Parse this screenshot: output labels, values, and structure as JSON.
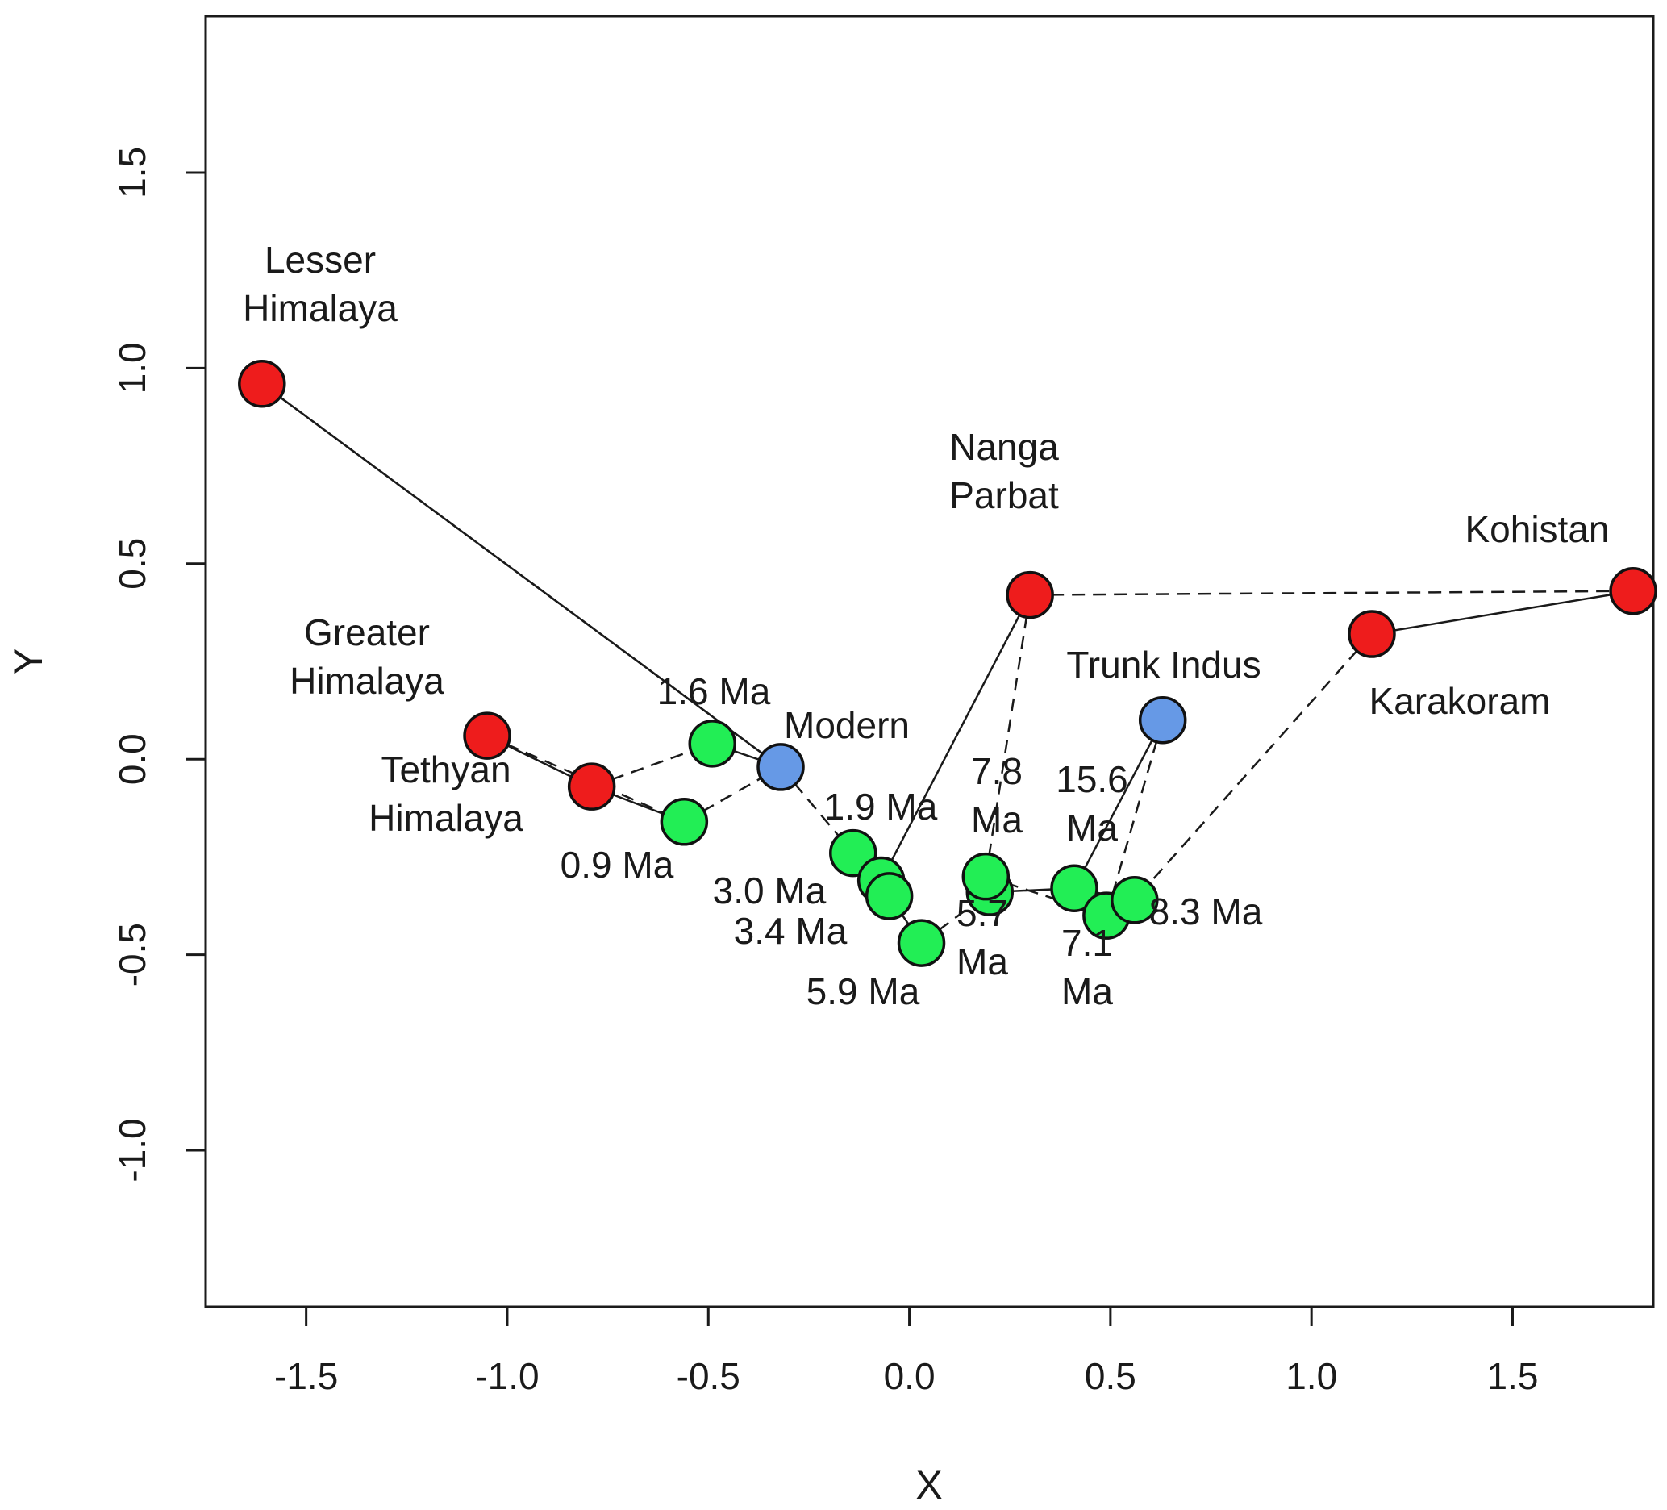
{
  "chart_data": {
    "type": "scatter",
    "xlabel": "X",
    "ylabel": "Y",
    "xlim": [
      -1.75,
      1.85
    ],
    "ylim": [
      -1.4,
      1.9
    ],
    "x_ticks": [
      "-1.5",
      "-1.0",
      "-0.5",
      "0.0",
      "0.5",
      "1.0",
      "1.5"
    ],
    "x_tick_values": [
      -1.5,
      -1.0,
      -0.5,
      0.0,
      0.5,
      1.0,
      1.5
    ],
    "y_ticks": [
      "-1.0",
      "-0.5",
      "0.0",
      "0.5",
      "1.0",
      "1.5"
    ],
    "y_tick_values": [
      -1.0,
      -0.5,
      0.0,
      0.5,
      1.0,
      1.5
    ],
    "grid": false,
    "colors": {
      "source": "#ee1c1c",
      "river": "#6699e6",
      "core": "#22ee55"
    },
    "points": [
      {
        "id": "lesser-himalaya",
        "label_lines": [
          "Lesser",
          "Himalaya"
        ],
        "x": -1.61,
        "y": 0.96,
        "group": "source"
      },
      {
        "id": "greater-himalaya",
        "label_lines": [
          "Greater",
          "Himalaya"
        ],
        "x": -1.05,
        "y": 0.06,
        "group": "source"
      },
      {
        "id": "tethyan-himalaya",
        "label_lines": [
          "Tethyan",
          "Himalaya"
        ],
        "x": -0.79,
        "y": -0.07,
        "group": "source"
      },
      {
        "id": "nanga-parbat",
        "label_lines": [
          "Nanga",
          "Parbat"
        ],
        "x": 0.3,
        "y": 0.42,
        "group": "source"
      },
      {
        "id": "karakoram",
        "label_lines": [
          "Karakoram"
        ],
        "x": 1.15,
        "y": 0.32,
        "group": "source"
      },
      {
        "id": "kohistan",
        "label_lines": [
          "Kohistan"
        ],
        "x": 1.8,
        "y": 0.43,
        "group": "source"
      },
      {
        "id": "modern",
        "label_lines": [
          "Modern"
        ],
        "x": -0.32,
        "y": -0.02,
        "group": "river"
      },
      {
        "id": "trunk-indus",
        "label_lines": [
          "Trunk Indus"
        ],
        "x": 0.63,
        "y": 0.1,
        "group": "river"
      },
      {
        "id": "ma-0-9",
        "label_lines": [
          "0.9 Ma"
        ],
        "x": -0.56,
        "y": -0.16,
        "group": "core"
      },
      {
        "id": "ma-1-6",
        "label_lines": [
          "1.6 Ma"
        ],
        "x": -0.49,
        "y": 0.04,
        "group": "core"
      },
      {
        "id": "ma-1-9",
        "label_lines": [
          "1.9 Ma"
        ],
        "x": -0.14,
        "y": -0.24,
        "group": "core"
      },
      {
        "id": "ma-3-0",
        "label_lines": [
          "3.0 Ma"
        ],
        "x": -0.07,
        "y": -0.31,
        "group": "core"
      },
      {
        "id": "ma-3-4",
        "label_lines": [
          "3.4 Ma"
        ],
        "x": -0.05,
        "y": -0.35,
        "group": "core"
      },
      {
        "id": "ma-5-9",
        "label_lines": [
          "5.9 Ma"
        ],
        "x": 0.03,
        "y": -0.47,
        "group": "core"
      },
      {
        "id": "ma-5-7",
        "label_lines": [
          "5.7",
          "Ma"
        ],
        "x": 0.2,
        "y": -0.34,
        "group": "core"
      },
      {
        "id": "ma-7-8",
        "label_lines": [
          "7.8",
          "Ma"
        ],
        "x": 0.19,
        "y": -0.3,
        "group": "core"
      },
      {
        "id": "ma-15-6",
        "label_lines": [
          "15.6",
          "Ma"
        ],
        "x": 0.41,
        "y": -0.33,
        "group": "core"
      },
      {
        "id": "ma-7-1",
        "label_lines": [
          "7.1",
          "Ma"
        ],
        "x": 0.49,
        "y": -0.4,
        "group": "core"
      },
      {
        "id": "ma-8-3",
        "label_lines": [
          "8.3 Ma"
        ],
        "x": 0.56,
        "y": -0.36,
        "group": "core"
      }
    ],
    "solid_links": [
      [
        "lesser-himalaya",
        "modern"
      ],
      [
        "greater-himalaya",
        "tethyan-himalaya"
      ],
      [
        "tethyan-himalaya",
        "ma-0-9"
      ],
      [
        "ma-1-6",
        "modern"
      ],
      [
        "nanga-parbat",
        "ma-3-0"
      ],
      [
        "karakoram",
        "kohistan"
      ],
      [
        "trunk-indus",
        "ma-15-6"
      ],
      [
        "ma-5-7",
        "ma-15-6"
      ],
      [
        "ma-15-6",
        "ma-8-3"
      ]
    ],
    "dashed_links": [
      [
        "lesser-himalaya",
        "modern"
      ],
      [
        "greater-himalaya",
        "ma-0-9"
      ],
      [
        "tethyan-himalaya",
        "ma-1-6"
      ],
      [
        "ma-0-9",
        "modern"
      ],
      [
        "modern",
        "ma-1-9"
      ],
      [
        "nanga-parbat",
        "kohistan"
      ],
      [
        "nanga-parbat",
        "ma-7-8"
      ],
      [
        "karakoram",
        "ma-8-3"
      ],
      [
        "trunk-indus",
        "ma-7-1"
      ],
      [
        "ma-3-4",
        "ma-5-9"
      ],
      [
        "ma-5-9",
        "ma-5-7"
      ],
      [
        "ma-7-8",
        "ma-7-1"
      ]
    ]
  }
}
